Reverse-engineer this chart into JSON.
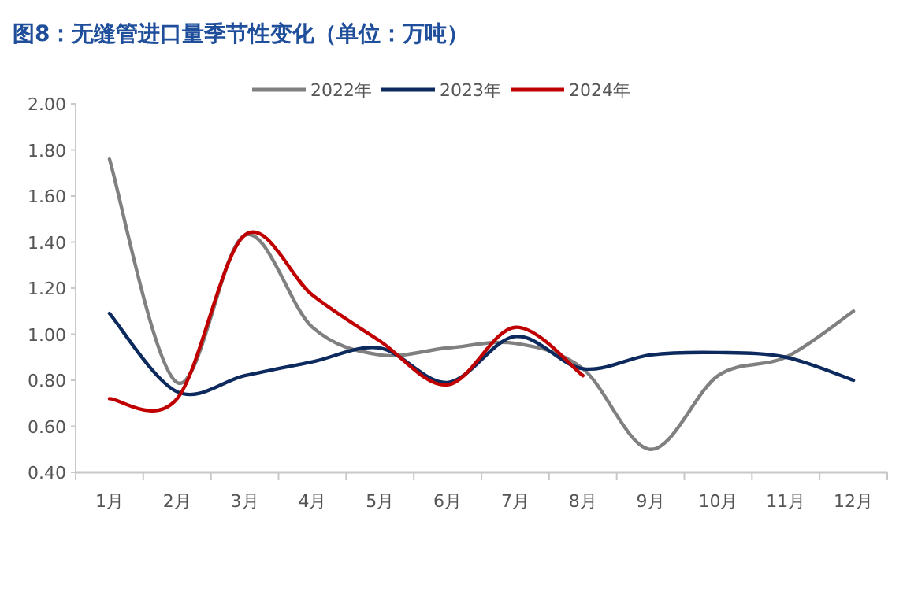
{
  "chart_data": {
    "type": "line",
    "title": "图8：无缝管进口量季节性变化（单位：万吨）",
    "categories": [
      "1月",
      "2月",
      "3月",
      "4月",
      "5月",
      "6月",
      "7月",
      "8月",
      "9月",
      "10月",
      "11月",
      "12月"
    ],
    "series": [
      {
        "name": "2022年",
        "color": "#808080",
        "values": [
          1.76,
          0.79,
          1.43,
          1.03,
          0.91,
          0.94,
          0.96,
          0.85,
          0.5,
          0.82,
          0.9,
          1.1
        ]
      },
      {
        "name": "2023年",
        "color": "#0d2a5e",
        "values": [
          1.09,
          0.75,
          0.82,
          0.88,
          0.94,
          0.79,
          0.99,
          0.85,
          0.91,
          0.92,
          0.9,
          0.8
        ]
      },
      {
        "name": "2024年",
        "color": "#c00000",
        "values": [
          0.72,
          0.72,
          1.43,
          1.17,
          0.97,
          0.78,
          1.03,
          0.82,
          null,
          null,
          null,
          null
        ]
      }
    ],
    "ylim": [
      0.4,
      2.0
    ],
    "yticks": [
      {
        "value": 0.4,
        "label": "0.40"
      },
      {
        "value": 0.6,
        "label": "0.60"
      },
      {
        "value": 0.8,
        "label": "0.80"
      },
      {
        "value": 1.0,
        "label": "1.00"
      },
      {
        "value": 1.2,
        "label": "1.20"
      },
      {
        "value": 1.4,
        "label": "1.40"
      },
      {
        "value": 1.6,
        "label": "1.60"
      },
      {
        "value": 1.8,
        "label": "1.80"
      },
      {
        "value": 2.0,
        "label": "2.00"
      }
    ],
    "legend": "top",
    "grid": false,
    "marker": "none",
    "line_style": "solid"
  }
}
